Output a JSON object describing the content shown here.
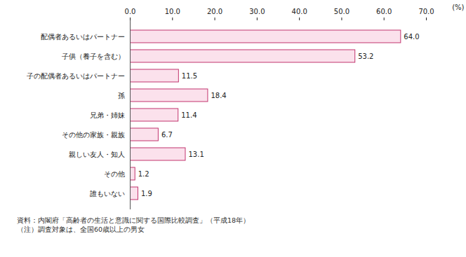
{
  "chart_data": {
    "type": "bar",
    "orientation": "horizontal",
    "categories": [
      "配偶者あるいはパートナー",
      "子供（養子を含む）",
      "子の配偶者あるいはパートナー",
      "孫",
      "兄弟・姉妹",
      "その他の家族・親族",
      "親しい友人・知人",
      "その他",
      "誰もいない"
    ],
    "values": [
      64.0,
      53.2,
      11.5,
      18.4,
      11.4,
      6.7,
      13.1,
      1.2,
      1.9
    ],
    "value_labels": [
      "64.0",
      "53.2",
      "11.5",
      "18.4",
      "11.4",
      "6.7",
      "13.1",
      "1.2",
      "1.9"
    ],
    "data_labels": true,
    "color": "#fbe1ec",
    "x_label": "(%)",
    "xlim": [
      0,
      70
    ],
    "xticks": [
      {
        "value": 0,
        "label": "0.0"
      },
      {
        "value": 10,
        "label": "10.0"
      },
      {
        "value": 20,
        "label": "20.0"
      },
      {
        "value": 30,
        "label": "30.0"
      },
      {
        "value": 40,
        "label": "40.0"
      },
      {
        "value": 50,
        "label": "50.0"
      },
      {
        "value": 60,
        "label": "60.0"
      },
      {
        "value": 70,
        "label": "70.0"
      }
    ],
    "grid": false,
    "notes": [
      "資料：内閣府「高齢者の生活と意識に関する国際比較調査」（平成18年）",
      "（注）調査対象は、全国60歳以上の男女"
    ]
  }
}
